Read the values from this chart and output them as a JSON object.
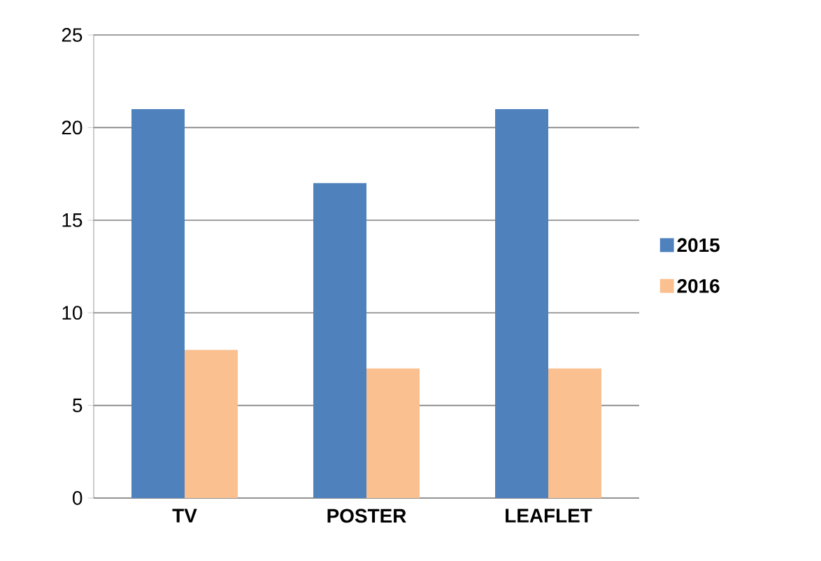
{
  "chart_data": {
    "type": "bar",
    "categories": [
      "TV",
      "POSTER",
      "LEAFLET"
    ],
    "series": [
      {
        "name": "2015",
        "color": "#4f81bd",
        "values": [
          21,
          17,
          21
        ]
      },
      {
        "name": "2016",
        "color": "#fac090",
        "values": [
          8,
          7,
          7
        ]
      }
    ],
    "ylim": [
      0,
      25
    ],
    "yticks": [
      0,
      5,
      10,
      15,
      20,
      25
    ],
    "grid": "y",
    "legend": "right"
  }
}
